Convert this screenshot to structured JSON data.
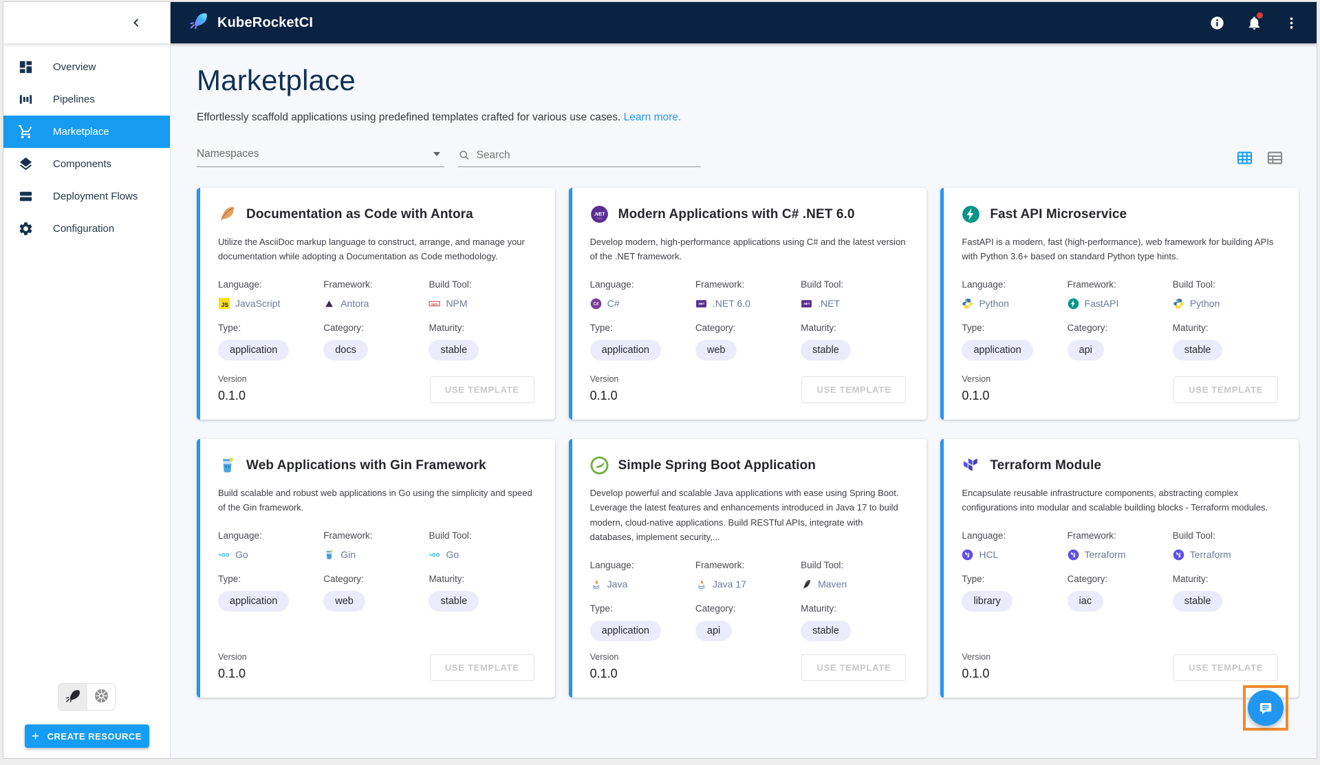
{
  "appbar": {
    "brand": "KubeRocketCI",
    "icons": [
      "info-icon",
      "notifications-icon",
      "kebab-menu-icon"
    ]
  },
  "sidebar": {
    "items": [
      {
        "label": "Overview",
        "icon": "overview",
        "active": false
      },
      {
        "label": "Pipelines",
        "icon": "pipelines",
        "active": false
      },
      {
        "label": "Marketplace",
        "icon": "marketplace",
        "active": true
      },
      {
        "label": "Components",
        "icon": "components",
        "active": false
      },
      {
        "label": "Deployment Flows",
        "icon": "deployment-flows",
        "active": false
      },
      {
        "label": "Configuration",
        "icon": "configuration",
        "active": false
      }
    ],
    "engine_toggle": [
      "kuberocketci-engine",
      "kubernetes-engine"
    ],
    "create_button_label": "CREATE RESOURCE"
  },
  "page": {
    "title": "Marketplace",
    "subtitle": "Effortlessly scaffold applications using predefined templates crafted for various use cases.",
    "learn_more_label": "Learn more."
  },
  "filters": {
    "namespaces_label": "Namespaces",
    "search_placeholder": "Search",
    "view_mode": "grid"
  },
  "cards": [
    {
      "title": "Documentation as Code with Antora",
      "icon": "feather",
      "description": "Utilize the AsciiDoc markup language to construct, arrange, and manage your documentation while adopting a Documentation as Code methodology.",
      "meta": [
        {
          "label": "Language:",
          "value": "JavaScript",
          "icon": "js"
        },
        {
          "label": "Framework:",
          "value": "Antora",
          "icon": "antora"
        },
        {
          "label": "Build Tool:",
          "value": "NPM",
          "icon": "npm"
        }
      ],
      "tags": [
        {
          "label": "Type:",
          "value": "application"
        },
        {
          "label": "Category:",
          "value": "docs"
        },
        {
          "label": "Maturity:",
          "value": "stable"
        }
      ],
      "version_label": "Version",
      "version": "0.1.0",
      "button_label": "USE TEMPLATE"
    },
    {
      "title": "Modern Applications with C# .NET 6.0",
      "icon": "dotnet-circle",
      "description": "Develop modern, high-performance applications using C# and the latest version of the .NET framework.",
      "meta": [
        {
          "label": "Language:",
          "value": "C#",
          "icon": "csharp"
        },
        {
          "label": "Framework:",
          "value": ".NET 6.0",
          "icon": "dotnet-sq"
        },
        {
          "label": "Build Tool:",
          "value": ".NET",
          "icon": "dotnet-sq"
        }
      ],
      "tags": [
        {
          "label": "Type:",
          "value": "application"
        },
        {
          "label": "Category:",
          "value": "web"
        },
        {
          "label": "Maturity:",
          "value": "stable"
        }
      ],
      "version_label": "Version",
      "version": "0.1.0",
      "button_label": "USE TEMPLATE"
    },
    {
      "title": "Fast API Microservice",
      "icon": "fastapi",
      "description": "FastAPI is a modern, fast (high-performance), web framework for building APIs with Python 3.6+ based on standard Python type hints.",
      "meta": [
        {
          "label": "Language:",
          "value": "Python",
          "icon": "python"
        },
        {
          "label": "Framework:",
          "value": "FastAPI",
          "icon": "fastapi"
        },
        {
          "label": "Build Tool:",
          "value": "Python",
          "icon": "python"
        }
      ],
      "tags": [
        {
          "label": "Type:",
          "value": "application"
        },
        {
          "label": "Category:",
          "value": "api"
        },
        {
          "label": "Maturity:",
          "value": "stable"
        }
      ],
      "version_label": "Version",
      "version": "0.1.0",
      "button_label": "USE TEMPLATE"
    },
    {
      "title": "Web Applications with Gin Framework",
      "icon": "gin",
      "description": "Build scalable and robust web applications in Go using the simplicity and speed of the Gin framework.",
      "meta": [
        {
          "label": "Language:",
          "value": "Go",
          "icon": "go"
        },
        {
          "label": "Framework:",
          "value": "Gin",
          "icon": "gin"
        },
        {
          "label": "Build Tool:",
          "value": "Go",
          "icon": "go"
        }
      ],
      "tags": [
        {
          "label": "Type:",
          "value": "application"
        },
        {
          "label": "Category:",
          "value": "web"
        },
        {
          "label": "Maturity:",
          "value": "stable"
        }
      ],
      "version_label": "Version",
      "version": "0.1.0",
      "button_label": "USE TEMPLATE"
    },
    {
      "title": "Simple Spring Boot Application",
      "icon": "spring",
      "description": "Develop powerful and scalable Java applications with ease using Spring Boot. Leverage the latest features and enhancements introduced in Java 17 to build modern, cloud-native applications. Build RESTful APIs, integrate with databases, implement security,...",
      "meta": [
        {
          "label": "Language:",
          "value": "Java",
          "icon": "java"
        },
        {
          "label": "Framework:",
          "value": "Java 17",
          "icon": "java"
        },
        {
          "label": "Build Tool:",
          "value": "Maven",
          "icon": "maven"
        }
      ],
      "tags": [
        {
          "label": "Type:",
          "value": "application"
        },
        {
          "label": "Category:",
          "value": "api"
        },
        {
          "label": "Maturity:",
          "value": "stable"
        }
      ],
      "version_label": "Version",
      "version": "0.1.0",
      "button_label": "USE TEMPLATE"
    },
    {
      "title": "Terraform Module",
      "icon": "terraform",
      "description": "Encapsulate reusable infrastructure components, abstracting complex configurations into modular and scalable building blocks - Terraform modules.",
      "meta": [
        {
          "label": "Language:",
          "value": "HCL",
          "icon": "terraform-circle"
        },
        {
          "label": "Framework:",
          "value": "Terraform",
          "icon": "terraform-circle"
        },
        {
          "label": "Build Tool:",
          "value": "Terraform",
          "icon": "terraform-circle"
        }
      ],
      "tags": [
        {
          "label": "Type:",
          "value": "library"
        },
        {
          "label": "Category:",
          "value": "iac"
        },
        {
          "label": "Maturity:",
          "value": "stable"
        }
      ],
      "version_label": "Version",
      "version": "0.1.0",
      "button_label": "USE TEMPLATE"
    }
  ],
  "colors": {
    "appbar_bg": "#0b2342",
    "accent_blue": "#2196f3",
    "sidebar_active": "#169bf0",
    "create_button": "#149df2",
    "notification_dot": "#e53935",
    "annotation_highlight": "#ef8b2f",
    "chip_bg": "#ecebfb"
  }
}
